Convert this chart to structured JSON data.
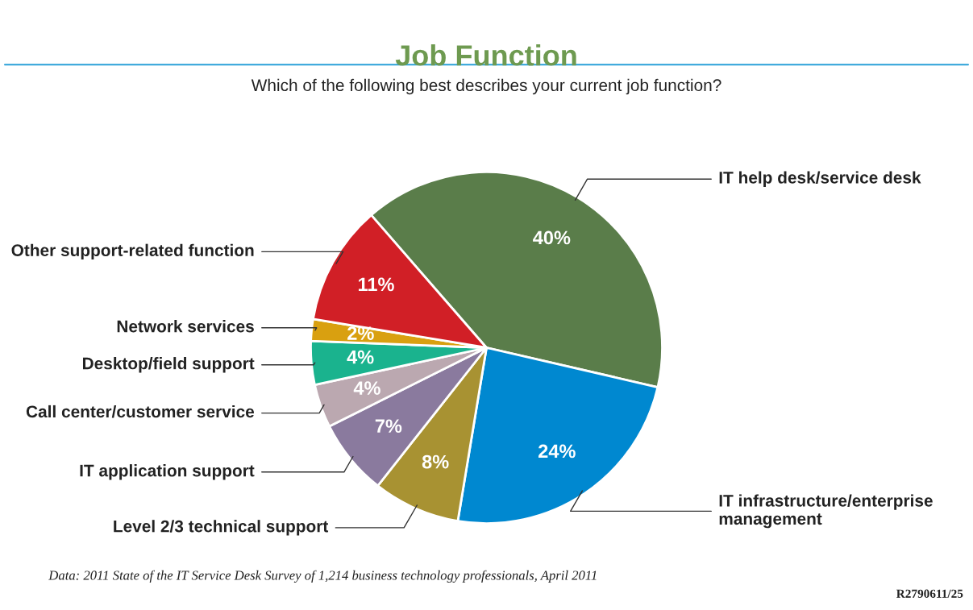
{
  "chart_data": {
    "type": "pie",
    "title": "Job Function",
    "subtitle": "Which of the following best describes your current job function?",
    "categories": [
      "IT help desk/service desk",
      "IT infrastructure/enterprise\nmanagement",
      "Level 2/3 technical support",
      "IT application support",
      "Call center/customer service",
      "Desktop/field support",
      "Network services",
      "Other support-related function"
    ],
    "values": [
      40,
      24,
      8,
      7,
      4,
      4,
      2,
      11
    ],
    "colors": [
      "#5a7d4a",
      "#0088d0",
      "#a89232",
      "#8a7a9e",
      "#bba8b0",
      "#1ab38e",
      "#d9a010",
      "#d11f26"
    ],
    "value_labels": [
      "40%",
      "24%",
      "8%",
      "7%",
      "4%",
      "4%",
      "2%",
      "11%"
    ],
    "annotations": [
      "Data: 2011 State of the IT Service Desk Survey of 1,214 business technology professionals, April 2011",
      "R2790611/25"
    ]
  }
}
